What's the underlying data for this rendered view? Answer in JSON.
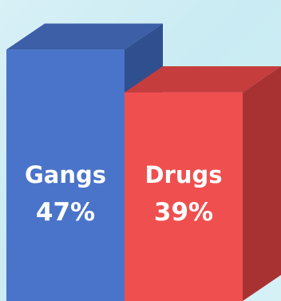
{
  "chart_data": {
    "type": "bar",
    "categories": [
      "Gangs",
      "Drugs"
    ],
    "values": [
      47,
      39
    ],
    "labels": [
      "47%",
      "39%"
    ],
    "ylim": [
      0,
      50
    ],
    "colors": {
      "gangs_front": "#4a74c9",
      "gangs_side": "#2f4f8f",
      "gangs_top": "#3c5fa8",
      "drugs_front": "#f04f4f",
      "drugs_side": "#a83232",
      "drugs_top": "#c63d3d"
    }
  }
}
